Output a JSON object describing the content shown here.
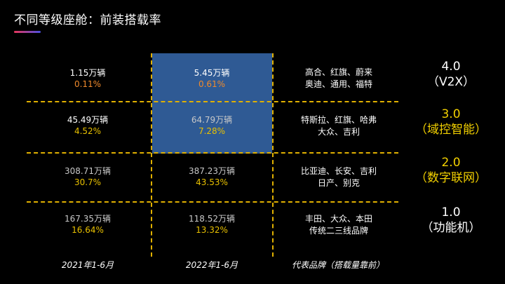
{
  "title": "不同等级座舱：前装搭载率",
  "colors": {
    "background": "#000000",
    "highlight": "#2f5a94",
    "gridline": "#e0b000",
    "pct_orange": "#f08a2c",
    "pct_yellow": "#e8c000",
    "text_white": "#ffffff",
    "text_grey": "#c8c8c8",
    "level_yellow": "#f2d000"
  },
  "chart_data": {
    "type": "table",
    "columns": [
      "2021年1-6月",
      "2022年1-6月",
      "代表品牌（搭载量靠前）"
    ],
    "rows": [
      {
        "level": "4.0",
        "level_name": "（V2X）",
        "y2021": {
          "units": "1.15万辆",
          "rate": "0.11%"
        },
        "y2022": {
          "units": "5.45万辆",
          "rate": "0.61%"
        },
        "brands": [
          "高合、红旗、蔚来",
          "奥迪、通用、福特"
        ]
      },
      {
        "level": "3.0",
        "level_name": "（域控智能）",
        "y2021": {
          "units": "45.49万辆",
          "rate": "4.52%"
        },
        "y2022": {
          "units": "64.79万辆",
          "rate": "7.28%"
        },
        "brands": [
          "特斯拉、红旗、哈弗",
          "大众、吉利"
        ]
      },
      {
        "level": "2.0",
        "level_name": "（数字联网）",
        "y2021": {
          "units": "308.71万辆",
          "rate": "30.7%"
        },
        "y2022": {
          "units": "387.23万辆",
          "rate": "43.53%"
        },
        "brands": [
          "比亚迪、长安、吉利",
          "日产、别克"
        ]
      },
      {
        "level": "1.0",
        "level_name": "（功能机）",
        "y2021": {
          "units": "167.35万辆",
          "rate": "16.64%"
        },
        "y2022": {
          "units": "118.52万辆",
          "rate": "13.32%"
        },
        "brands": [
          "丰田、大众、本田",
          "传统二三线品牌"
        ]
      }
    ]
  }
}
